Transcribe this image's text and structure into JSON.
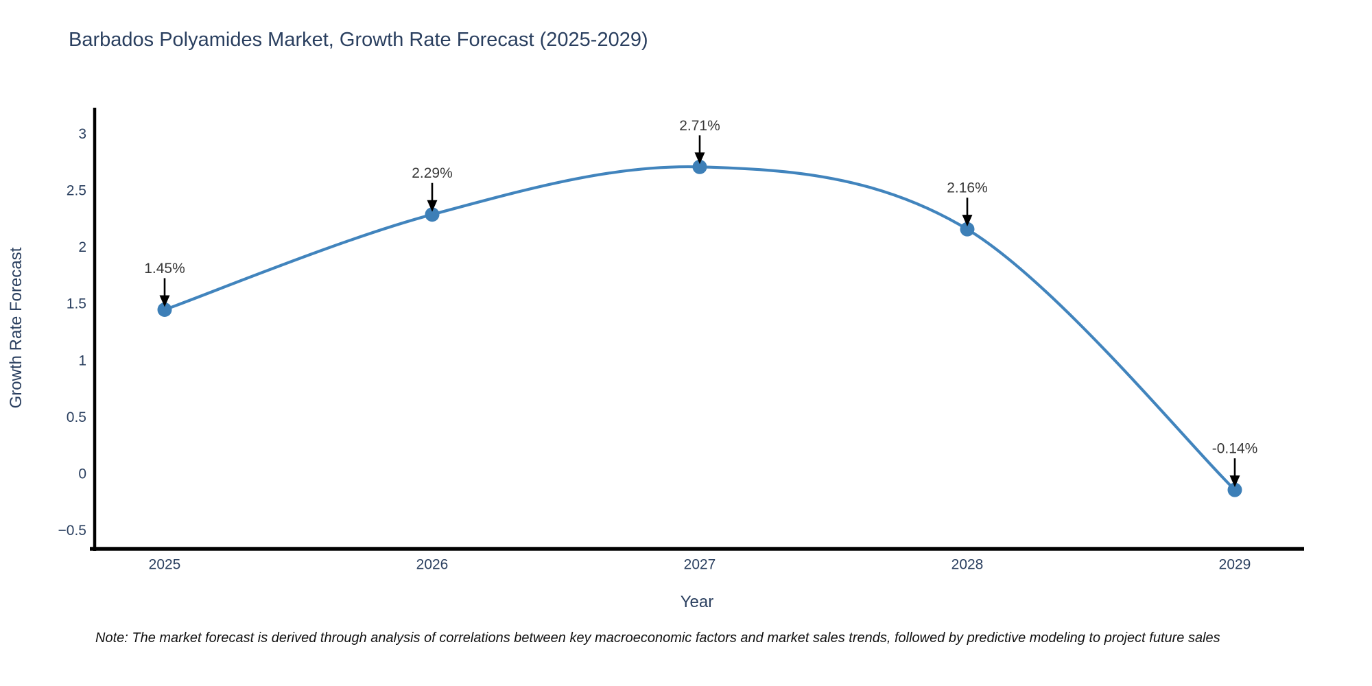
{
  "page": {
    "title": "Barbados Polyamides Market, Growth Rate Forecast (2025-2029)",
    "note": "Note: The market forecast is derived through analysis of correlations between key macroeconomic factors and market sales trends, followed by predictive modeling to project future sales"
  },
  "chart_data": {
    "type": "line",
    "title": "Barbados Polyamides Market, Growth Rate Forecast (2025-2029)",
    "xlabel": "Year",
    "ylabel": "Growth Rate Forecast",
    "x": [
      2025,
      2026,
      2027,
      2028,
      2029
    ],
    "series": [
      {
        "name": "Growth Rate Forecast",
        "values": [
          1.45,
          2.29,
          2.71,
          2.16,
          -0.14
        ],
        "labels": [
          "1.45%",
          "2.29%",
          "2.71%",
          "2.16%",
          "-0.14%"
        ]
      }
    ],
    "xtick_labels": [
      "2025",
      "2026",
      "2027",
      "2028",
      "2029"
    ],
    "ytick_values": [
      3,
      2.5,
      2,
      1.5,
      1,
      0.5,
      0,
      -0.5
    ],
    "ytick_labels": [
      "3",
      "2.5",
      "2",
      "1.5",
      "1",
      "0.5",
      "0",
      "−0.5"
    ],
    "ylim": [
      -0.7,
      3.25
    ],
    "grid": false,
    "legend": false,
    "line_style": "spline",
    "marker": "circle",
    "annotation_arrows": "down",
    "colors": {
      "line": "#4184bd",
      "marker": "#3d7fb7",
      "axis_line": "#000000",
      "title_text": "#2a3f5f",
      "tick_text": "#2a3f5f",
      "annotation_text": "#383838",
      "arrow": "#000000",
      "background": "#ffffff"
    }
  }
}
